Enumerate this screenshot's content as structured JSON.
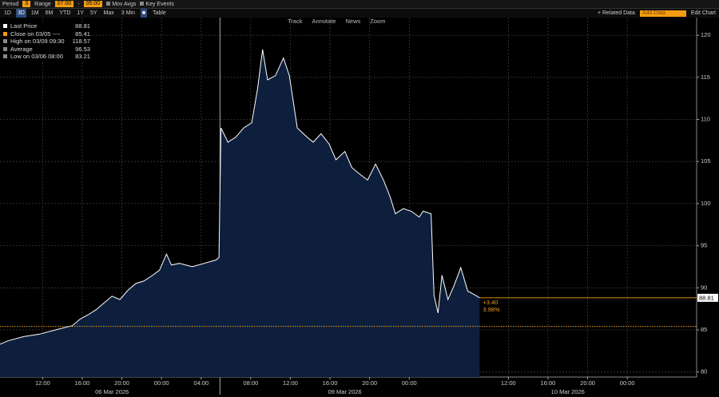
{
  "toolbar": {
    "period_label": "Period",
    "period_value": "3",
    "range_label": "Range",
    "range_start": "07:00",
    "range_sep": "-",
    "range_end": "05:00",
    "mov_avgs": "Mov Avgs",
    "key_events": "Key Events"
  },
  "periods": [
    "1D",
    "3D",
    "1M",
    "6M",
    "YTD",
    "1Y",
    "5Y",
    "Max"
  ],
  "interval": "3 Min",
  "table": "Table",
  "related_data": "+ Related Data",
  "add_data": "Add Data",
  "edit_chart": "Edit Chart",
  "chart_tools": [
    "Track",
    "Annotate",
    "News",
    "Zoom"
  ],
  "chart_data": {
    "type": "area",
    "legend": [
      {
        "label": "Last Price",
        "value": 88.81
      },
      {
        "label": "Close on 03/05 ----",
        "value": 85.41
      },
      {
        "label": "High on 03/09 09:30",
        "value": 118.57
      },
      {
        "label": "Average",
        "value": 96.53
      },
      {
        "label": "Low on 03/06 08:00",
        "value": 83.21
      }
    ],
    "x": [
      0,
      0.8,
      2.4,
      4.0,
      5.6,
      7.3,
      8.1,
      8.9,
      9.7,
      10.5,
      11.3,
      12.1,
      12.9,
      13.7,
      14.5,
      15.3,
      16.1,
      16.8,
      17.3,
      18.1,
      19.4,
      20.6,
      21.8,
      22.1,
      22.3,
      23.0,
      23.8,
      24.6,
      25.4,
      26.0,
      26.5,
      27.0,
      27.8,
      28.6,
      29.2,
      30.0,
      30.8,
      31.6,
      32.4,
      33.2,
      33.9,
      34.8,
      35.5,
      36.3,
      37.1,
      37.9,
      38.7,
      39.4,
      39.9,
      40.7,
      41.5,
      42.3,
      42.7,
      43.5,
      43.8,
      44.2,
      44.6,
      45.2,
      45.8,
      46.5,
      47.2,
      47.7,
      48.4
    ],
    "series": [
      {
        "name": "Last Price",
        "color": "#ffffff",
        "fill": "#0d1f3d",
        "values": [
          83.3,
          83.7,
          84.2,
          84.5,
          85.0,
          85.5,
          86.3,
          86.8,
          87.4,
          88.2,
          89.0,
          88.6,
          89.7,
          90.5,
          90.8,
          91.4,
          92.1,
          94.0,
          92.7,
          92.9,
          92.5,
          92.9,
          93.3,
          93.6,
          109.0,
          107.3,
          107.9,
          109.0,
          109.6,
          113.7,
          118.3,
          114.7,
          115.2,
          117.3,
          115.2,
          109.0,
          108.1,
          107.3,
          108.3,
          107.1,
          105.2,
          106.2,
          104.3,
          103.5,
          102.8,
          104.7,
          102.8,
          100.7,
          98.8,
          99.4,
          99.1,
          98.4,
          99.1,
          98.8,
          89.1,
          87.0,
          91.5,
          88.6,
          90.2,
          92.4,
          89.6,
          89.3,
          88.81
        ]
      }
    ],
    "change_label": "+3.40",
    "change_pct": "3.98%",
    "xlim": [
      0,
      70.3
    ],
    "ylim": [
      79.4,
      122.1
    ],
    "yticks": [
      80,
      85,
      90,
      95,
      100,
      105,
      110,
      115,
      120
    ],
    "xticks": [
      {
        "value": 4.3,
        "label": "12:00"
      },
      {
        "value": 8.3,
        "label": "16:00"
      },
      {
        "value": 12.3,
        "label": "20:00"
      },
      {
        "value": 16.3,
        "label": "00:00"
      },
      {
        "value": 20.3,
        "label": "04:00"
      },
      {
        "value": 25.3,
        "label": "08:00"
      },
      {
        "value": 29.3,
        "label": "12:00"
      },
      {
        "value": 33.3,
        "label": "16:00"
      },
      {
        "value": 37.3,
        "label": "20:00"
      },
      {
        "value": 41.3,
        "label": "00:00"
      },
      {
        "value": 51.3,
        "label": "12:00"
      },
      {
        "value": 55.3,
        "label": "16:00"
      },
      {
        "value": 59.3,
        "label": "20:00"
      },
      {
        "value": 63.3,
        "label": "00:00"
      }
    ],
    "day_labels": [
      {
        "value": 11.3,
        "label": "06 Mar 2026"
      },
      {
        "value": 34.8,
        "label": "09 Mar 2026"
      },
      {
        "value": 57.3,
        "label": "10 Mar 2026"
      }
    ],
    "session_breaks": [
      22.2
    ],
    "grid": true,
    "close_color": "#f39c12",
    "last_color": "#f39c12"
  }
}
